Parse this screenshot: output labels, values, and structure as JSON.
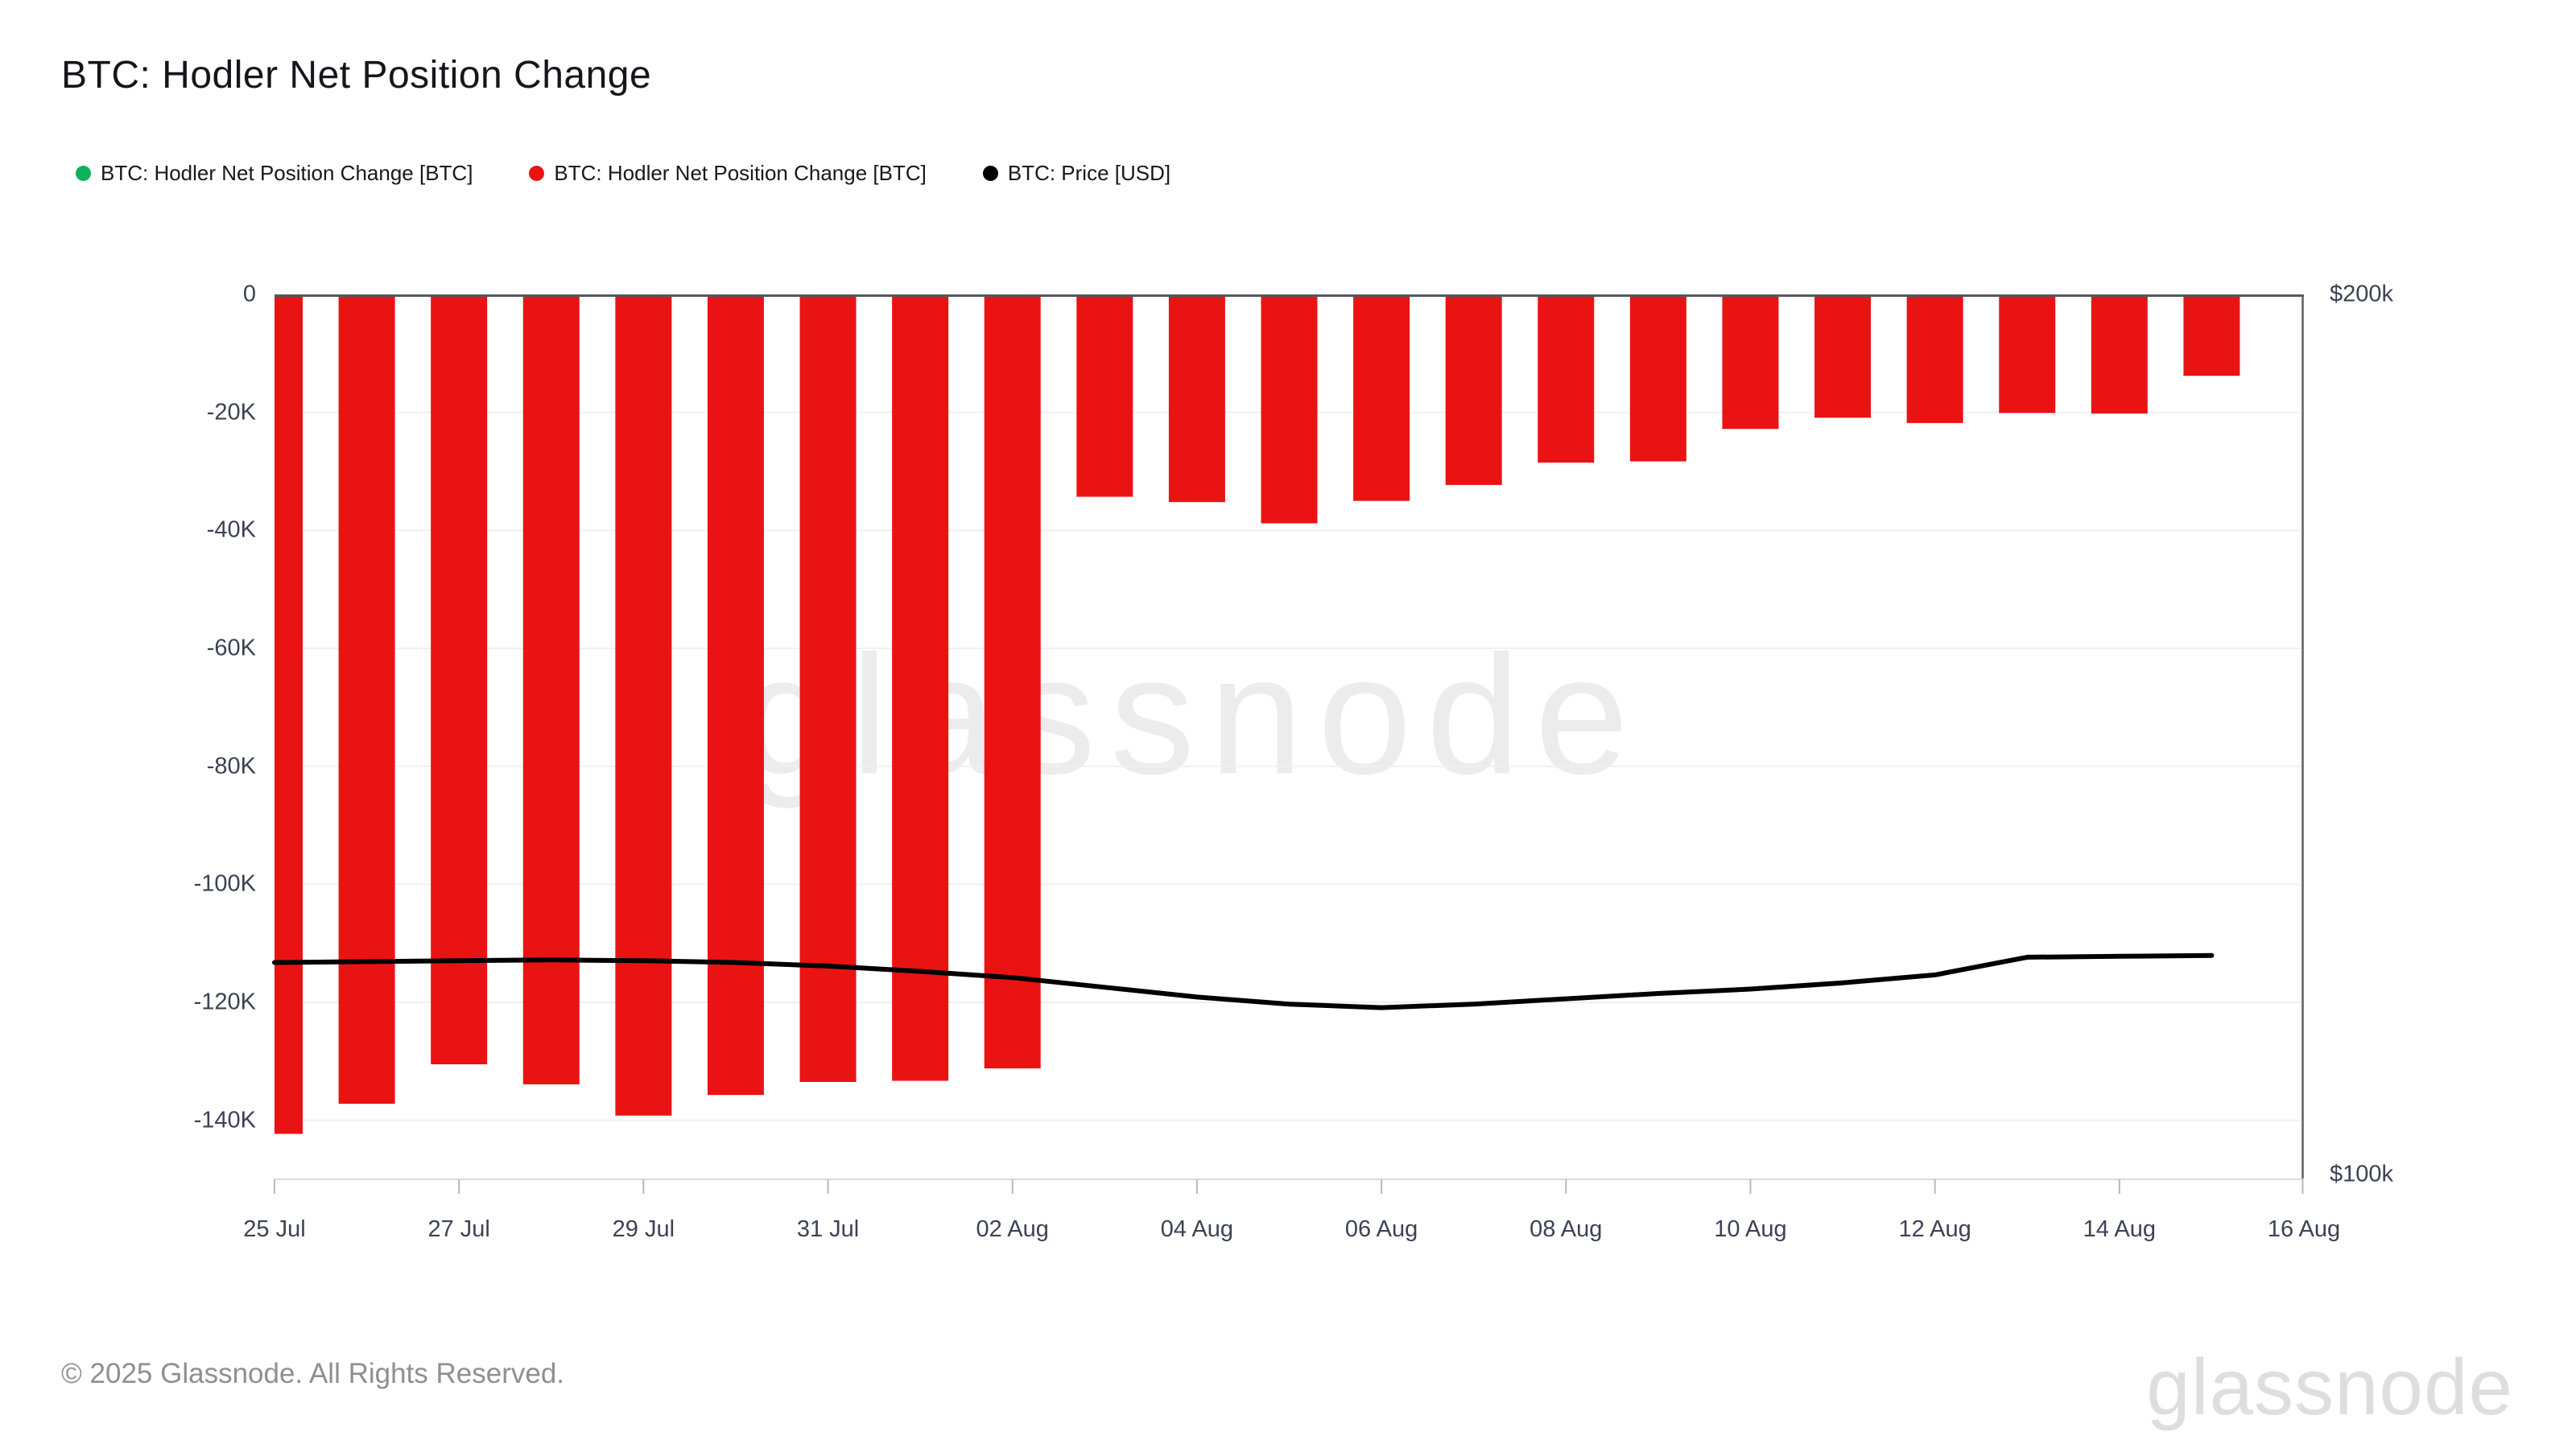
{
  "title": "BTC: Hodler Net Position Change",
  "legend": [
    {
      "label": "BTC: Hodler Net Position Change [BTC]",
      "color": "#0cb25b"
    },
    {
      "label": "BTC: Hodler Net Position Change [BTC]",
      "color": "#ea1313"
    },
    {
      "label": "BTC: Price [USD]",
      "color": "#000000"
    }
  ],
  "watermark": "glassnode",
  "footer": {
    "copyright": "© 2025 Glassnode. All Rights Reserved.",
    "logo": "glassnode"
  },
  "chart_data": {
    "type": "bar+line",
    "title": "BTC: Hodler Net Position Change",
    "x": [
      "25 Jul",
      "26 Jul",
      "27 Jul",
      "28 Jul",
      "29 Jul",
      "30 Jul",
      "31 Jul",
      "01 Aug",
      "02 Aug",
      "03 Aug",
      "04 Aug",
      "05 Aug",
      "06 Aug",
      "07 Aug",
      "08 Aug",
      "09 Aug",
      "10 Aug",
      "11 Aug",
      "12 Aug",
      "13 Aug",
      "14 Aug",
      "15 Aug"
    ],
    "series": [
      {
        "name": "BTC: Hodler Net Position Change [BTC]",
        "type": "bar",
        "axis": "left",
        "color": "#ea1313",
        "values": [
          -142300,
          -137200,
          -130500,
          -133900,
          -139200,
          -135700,
          -133500,
          -133300,
          -131200,
          -34300,
          -35200,
          -38800,
          -35000,
          -32300,
          -28500,
          -28300,
          -22800,
          -20900,
          -21800,
          -20100,
          -20200,
          -13800
        ]
      },
      {
        "name": "BTC: Price [USD]",
        "type": "line",
        "axis": "right",
        "color": "#000000",
        "values": [
          124500,
          124600,
          124700,
          124800,
          124700,
          124500,
          124100,
          123500,
          122800,
          121700,
          120600,
          119800,
          119400,
          119800,
          120400,
          121000,
          121500,
          122200,
          123100,
          125100,
          125200,
          125300
        ]
      }
    ],
    "left_axis": {
      "min": -150000,
      "max": 0,
      "ticks": [
        {
          "label": "0",
          "value": 0
        },
        {
          "label": "-20K",
          "value": -20000
        },
        {
          "label": "-40K",
          "value": -40000
        },
        {
          "label": "-60K",
          "value": -60000
        },
        {
          "label": "-80K",
          "value": -80000
        },
        {
          "label": "-100K",
          "value": -100000
        },
        {
          "label": "-120K",
          "value": -120000
        },
        {
          "label": "-140K",
          "value": -140000
        }
      ]
    },
    "right_axis": {
      "min": 100000,
      "max": 200000,
      "ticks": [
        {
          "label": "$200k",
          "value": 200000
        },
        {
          "label": "$100k",
          "value": 100000
        }
      ]
    },
    "x_ticks": [
      {
        "label": "25 Jul",
        "day": 0
      },
      {
        "label": "27 Jul",
        "day": 2
      },
      {
        "label": "29 Jul",
        "day": 4
      },
      {
        "label": "31 Jul",
        "day": 6
      },
      {
        "label": "02 Aug",
        "day": 8
      },
      {
        "label": "04 Aug",
        "day": 10
      },
      {
        "label": "06 Aug",
        "day": 12
      },
      {
        "label": "08 Aug",
        "day": 14
      },
      {
        "label": "10 Aug",
        "day": 16
      },
      {
        "label": "12 Aug",
        "day": 18
      },
      {
        "label": "14 Aug",
        "day": 20
      },
      {
        "label": "16 Aug",
        "day": 22
      }
    ],
    "grid": "horizontal",
    "colors": {
      "grid_line": "#f0f0f0",
      "zero_line": "#54585e",
      "right_axis_line": "#5b6067",
      "bottom_axis_line": "#dcdcdc",
      "tick_mark": "#b9b9b9",
      "watermark": "#ececec",
      "label": "#3b4252"
    }
  }
}
